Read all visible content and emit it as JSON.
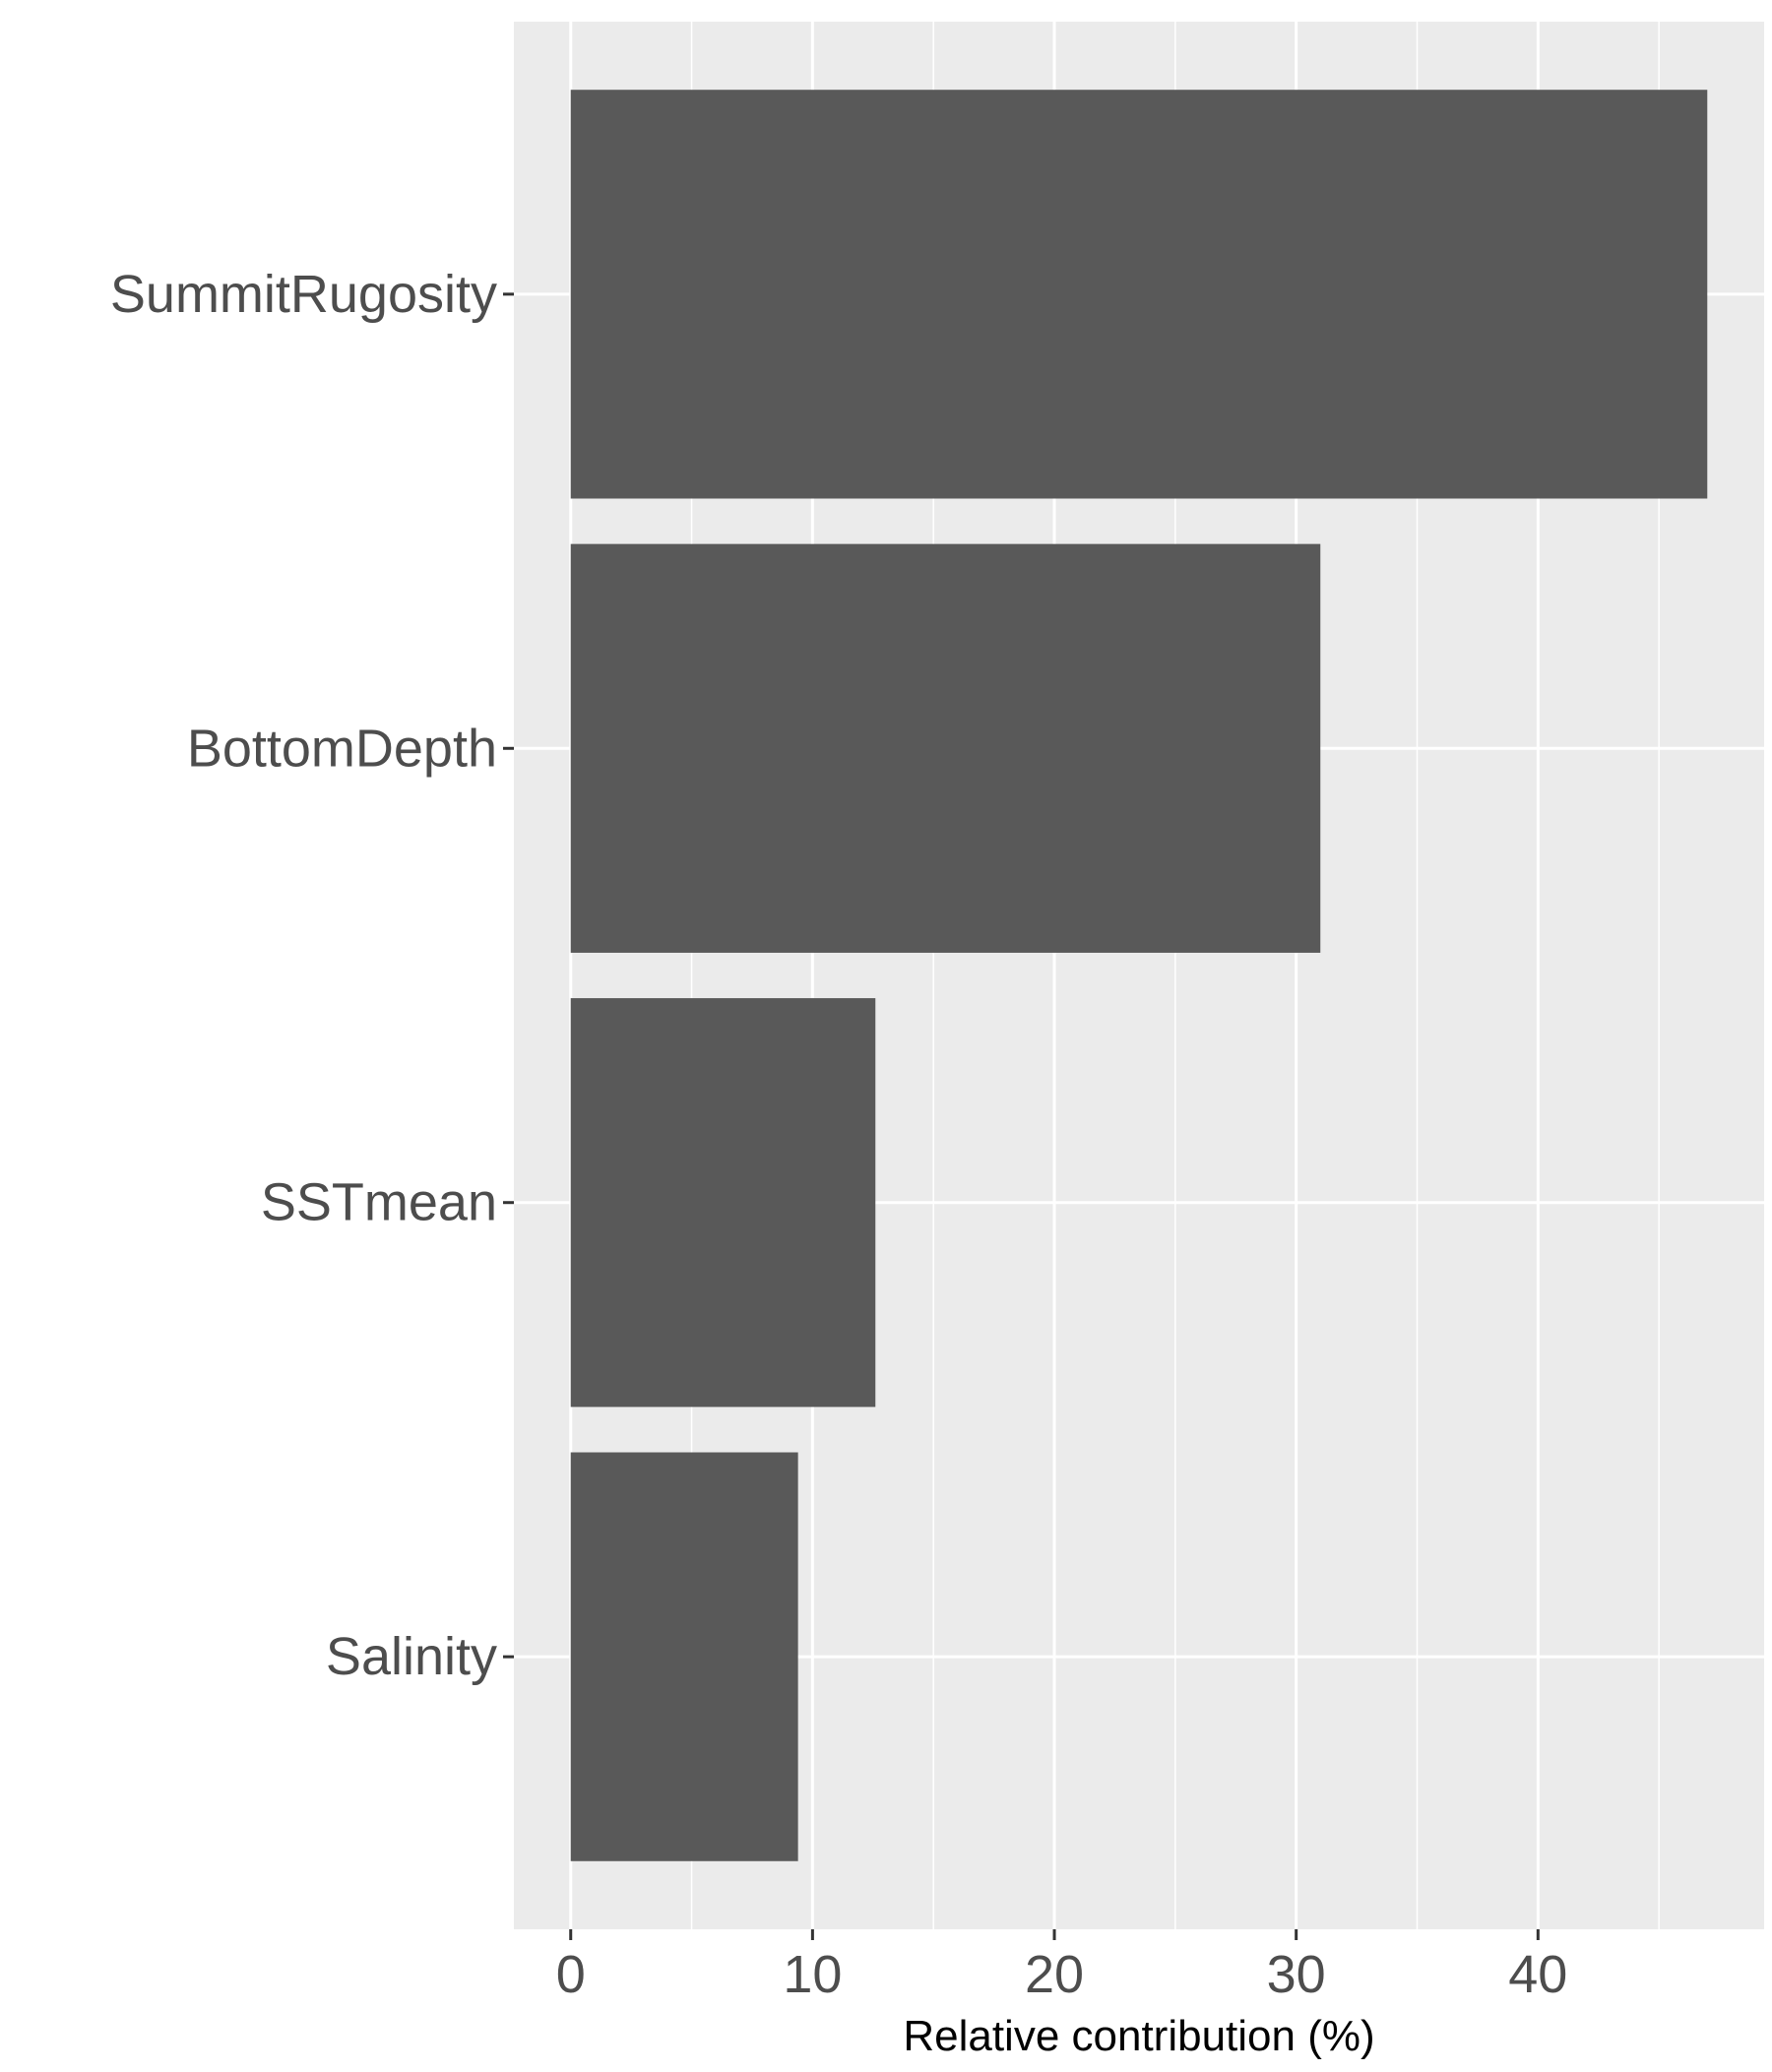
{
  "chart_data": {
    "type": "bar",
    "orientation": "horizontal",
    "categories": [
      "SummitRugosity",
      "BottomDepth",
      "SSTmean",
      "Salinity"
    ],
    "values": [
      47.0,
      31.0,
      12.6,
      9.4
    ],
    "title": "",
    "xlabel": "Relative contribution (%)",
    "ylabel": "",
    "xlim": [
      -2.35,
      49.35
    ],
    "xticks": [
      0,
      10,
      20,
      30,
      40
    ],
    "xtick_labels": [
      "0",
      "10",
      "20",
      "30",
      "40"
    ],
    "grid": true,
    "colors": {
      "panel_background": "#ebebeb",
      "grid": "#ffffff",
      "bar": "#595959",
      "tick_text": "#4d4d4d",
      "axis_title": "#000000",
      "tick_mark": "#333333"
    }
  }
}
